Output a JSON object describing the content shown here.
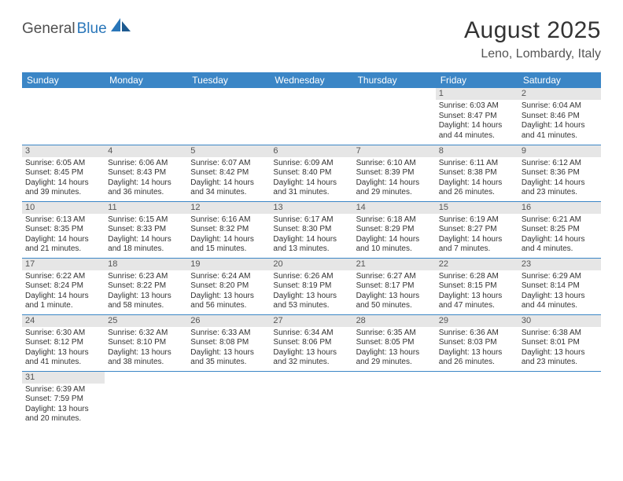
{
  "logo": {
    "part1": "General",
    "part2": "Blue"
  },
  "title": "August 2025",
  "location": "Leno, Lombardy, Italy",
  "dayHeaders": [
    "Sunday",
    "Monday",
    "Tuesday",
    "Wednesday",
    "Thursday",
    "Friday",
    "Saturday"
  ],
  "colors": {
    "headerBg": "#3b86c6",
    "dayNumBg": "#e6e6e6",
    "borderColor": "#3b86c6"
  },
  "weeks": [
    [
      {
        "n": "",
        "sr": "",
        "ss": "",
        "dl": ""
      },
      {
        "n": "",
        "sr": "",
        "ss": "",
        "dl": ""
      },
      {
        "n": "",
        "sr": "",
        "ss": "",
        "dl": ""
      },
      {
        "n": "",
        "sr": "",
        "ss": "",
        "dl": ""
      },
      {
        "n": "",
        "sr": "",
        "ss": "",
        "dl": ""
      },
      {
        "n": "1",
        "sr": "Sunrise: 6:03 AM",
        "ss": "Sunset: 8:47 PM",
        "dl": "Daylight: 14 hours and 44 minutes."
      },
      {
        "n": "2",
        "sr": "Sunrise: 6:04 AM",
        "ss": "Sunset: 8:46 PM",
        "dl": "Daylight: 14 hours and 41 minutes."
      }
    ],
    [
      {
        "n": "3",
        "sr": "Sunrise: 6:05 AM",
        "ss": "Sunset: 8:45 PM",
        "dl": "Daylight: 14 hours and 39 minutes."
      },
      {
        "n": "4",
        "sr": "Sunrise: 6:06 AM",
        "ss": "Sunset: 8:43 PM",
        "dl": "Daylight: 14 hours and 36 minutes."
      },
      {
        "n": "5",
        "sr": "Sunrise: 6:07 AM",
        "ss": "Sunset: 8:42 PM",
        "dl": "Daylight: 14 hours and 34 minutes."
      },
      {
        "n": "6",
        "sr": "Sunrise: 6:09 AM",
        "ss": "Sunset: 8:40 PM",
        "dl": "Daylight: 14 hours and 31 minutes."
      },
      {
        "n": "7",
        "sr": "Sunrise: 6:10 AM",
        "ss": "Sunset: 8:39 PM",
        "dl": "Daylight: 14 hours and 29 minutes."
      },
      {
        "n": "8",
        "sr": "Sunrise: 6:11 AM",
        "ss": "Sunset: 8:38 PM",
        "dl": "Daylight: 14 hours and 26 minutes."
      },
      {
        "n": "9",
        "sr": "Sunrise: 6:12 AM",
        "ss": "Sunset: 8:36 PM",
        "dl": "Daylight: 14 hours and 23 minutes."
      }
    ],
    [
      {
        "n": "10",
        "sr": "Sunrise: 6:13 AM",
        "ss": "Sunset: 8:35 PM",
        "dl": "Daylight: 14 hours and 21 minutes."
      },
      {
        "n": "11",
        "sr": "Sunrise: 6:15 AM",
        "ss": "Sunset: 8:33 PM",
        "dl": "Daylight: 14 hours and 18 minutes."
      },
      {
        "n": "12",
        "sr": "Sunrise: 6:16 AM",
        "ss": "Sunset: 8:32 PM",
        "dl": "Daylight: 14 hours and 15 minutes."
      },
      {
        "n": "13",
        "sr": "Sunrise: 6:17 AM",
        "ss": "Sunset: 8:30 PM",
        "dl": "Daylight: 14 hours and 13 minutes."
      },
      {
        "n": "14",
        "sr": "Sunrise: 6:18 AM",
        "ss": "Sunset: 8:29 PM",
        "dl": "Daylight: 14 hours and 10 minutes."
      },
      {
        "n": "15",
        "sr": "Sunrise: 6:19 AM",
        "ss": "Sunset: 8:27 PM",
        "dl": "Daylight: 14 hours and 7 minutes."
      },
      {
        "n": "16",
        "sr": "Sunrise: 6:21 AM",
        "ss": "Sunset: 8:25 PM",
        "dl": "Daylight: 14 hours and 4 minutes."
      }
    ],
    [
      {
        "n": "17",
        "sr": "Sunrise: 6:22 AM",
        "ss": "Sunset: 8:24 PM",
        "dl": "Daylight: 14 hours and 1 minute."
      },
      {
        "n": "18",
        "sr": "Sunrise: 6:23 AM",
        "ss": "Sunset: 8:22 PM",
        "dl": "Daylight: 13 hours and 58 minutes."
      },
      {
        "n": "19",
        "sr": "Sunrise: 6:24 AM",
        "ss": "Sunset: 8:20 PM",
        "dl": "Daylight: 13 hours and 56 minutes."
      },
      {
        "n": "20",
        "sr": "Sunrise: 6:26 AM",
        "ss": "Sunset: 8:19 PM",
        "dl": "Daylight: 13 hours and 53 minutes."
      },
      {
        "n": "21",
        "sr": "Sunrise: 6:27 AM",
        "ss": "Sunset: 8:17 PM",
        "dl": "Daylight: 13 hours and 50 minutes."
      },
      {
        "n": "22",
        "sr": "Sunrise: 6:28 AM",
        "ss": "Sunset: 8:15 PM",
        "dl": "Daylight: 13 hours and 47 minutes."
      },
      {
        "n": "23",
        "sr": "Sunrise: 6:29 AM",
        "ss": "Sunset: 8:14 PM",
        "dl": "Daylight: 13 hours and 44 minutes."
      }
    ],
    [
      {
        "n": "24",
        "sr": "Sunrise: 6:30 AM",
        "ss": "Sunset: 8:12 PM",
        "dl": "Daylight: 13 hours and 41 minutes."
      },
      {
        "n": "25",
        "sr": "Sunrise: 6:32 AM",
        "ss": "Sunset: 8:10 PM",
        "dl": "Daylight: 13 hours and 38 minutes."
      },
      {
        "n": "26",
        "sr": "Sunrise: 6:33 AM",
        "ss": "Sunset: 8:08 PM",
        "dl": "Daylight: 13 hours and 35 minutes."
      },
      {
        "n": "27",
        "sr": "Sunrise: 6:34 AM",
        "ss": "Sunset: 8:06 PM",
        "dl": "Daylight: 13 hours and 32 minutes."
      },
      {
        "n": "28",
        "sr": "Sunrise: 6:35 AM",
        "ss": "Sunset: 8:05 PM",
        "dl": "Daylight: 13 hours and 29 minutes."
      },
      {
        "n": "29",
        "sr": "Sunrise: 6:36 AM",
        "ss": "Sunset: 8:03 PM",
        "dl": "Daylight: 13 hours and 26 minutes."
      },
      {
        "n": "30",
        "sr": "Sunrise: 6:38 AM",
        "ss": "Sunset: 8:01 PM",
        "dl": "Daylight: 13 hours and 23 minutes."
      }
    ],
    [
      {
        "n": "31",
        "sr": "Sunrise: 6:39 AM",
        "ss": "Sunset: 7:59 PM",
        "dl": "Daylight: 13 hours and 20 minutes."
      },
      {
        "n": "",
        "sr": "",
        "ss": "",
        "dl": ""
      },
      {
        "n": "",
        "sr": "",
        "ss": "",
        "dl": ""
      },
      {
        "n": "",
        "sr": "",
        "ss": "",
        "dl": ""
      },
      {
        "n": "",
        "sr": "",
        "ss": "",
        "dl": ""
      },
      {
        "n": "",
        "sr": "",
        "ss": "",
        "dl": ""
      },
      {
        "n": "",
        "sr": "",
        "ss": "",
        "dl": ""
      }
    ]
  ]
}
